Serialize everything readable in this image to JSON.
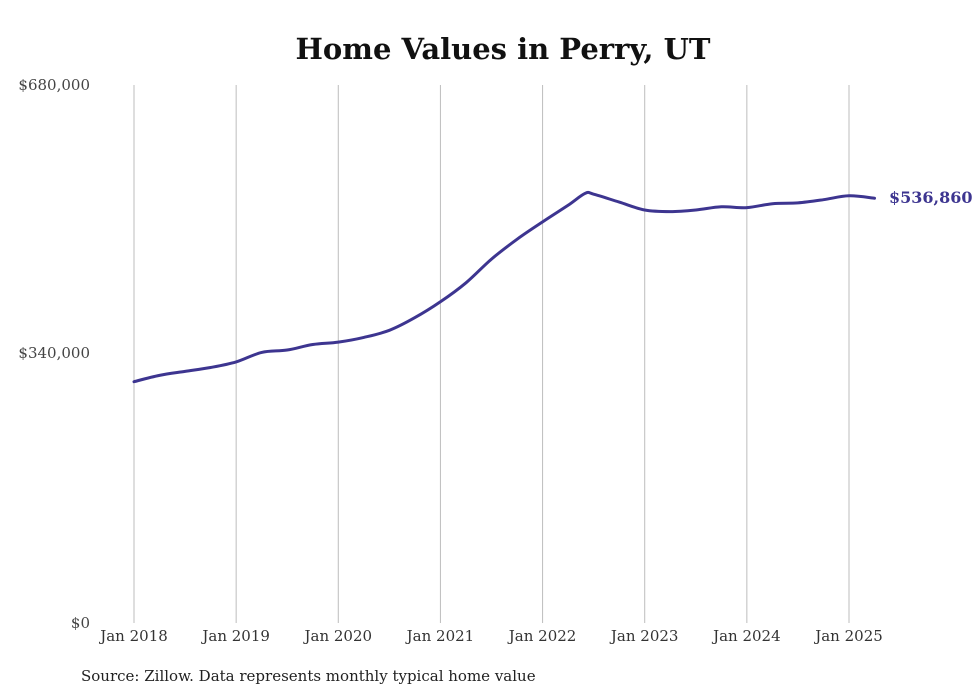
{
  "colors": {
    "line": "#3d3590",
    "grid": "#bdbdbd"
  },
  "source": "Source: Zillow. Data represents monthly typical home value",
  "chart_data": {
    "type": "line",
    "title": "Home Values in Perry, UT",
    "xlabel": "",
    "ylabel": "",
    "ylim": [
      0,
      680000
    ],
    "y_ticks": [
      0,
      340000,
      680000
    ],
    "y_tick_labels": [
      "$0",
      "$340,000",
      "$680,000"
    ],
    "x_ticks": [
      "2018-01",
      "2019-01",
      "2020-01",
      "2021-01",
      "2022-01",
      "2023-01",
      "2024-01",
      "2025-01"
    ],
    "x_tick_labels": [
      "Jan 2018",
      "Jan 2019",
      "Jan 2020",
      "Jan 2021",
      "Jan 2022",
      "Jan 2023",
      "Jan 2024",
      "Jan 2025"
    ],
    "grid": "vertical lines at x ticks",
    "end_label": "$536,860",
    "series": [
      {
        "x": [
          "2018-01",
          "2018-04",
          "2018-07",
          "2018-10",
          "2019-01",
          "2019-04",
          "2019-07",
          "2019-10",
          "2020-01",
          "2020-04",
          "2020-07",
          "2020-10",
          "2021-01",
          "2021-04",
          "2021-07",
          "2021-10",
          "2022-01",
          "2022-04",
          "2022-06",
          "2022-07",
          "2022-10",
          "2023-01",
          "2023-04",
          "2023-07",
          "2023-10",
          "2024-01",
          "2024-04",
          "2024-07",
          "2024-10",
          "2025-01",
          "2025-04"
        ],
        "values": [
          305000,
          313000,
          318000,
          323000,
          330000,
          342000,
          345000,
          352000,
          355000,
          361000,
          370000,
          386000,
          406000,
          430000,
          460000,
          485000,
          507000,
          528000,
          543000,
          542000,
          532000,
          522000,
          520000,
          522000,
          526000,
          525000,
          530000,
          531000,
          535000,
          540000,
          536860
        ]
      }
    ]
  }
}
